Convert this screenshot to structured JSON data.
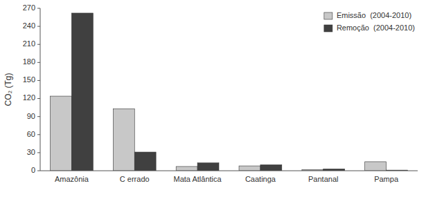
{
  "chart_data": {
    "type": "bar",
    "y_label": "CO₂ (Tg)",
    "categories": [
      "Amazônia",
      "C errado",
      "Mata Atlântica",
      "Caatinga",
      "Pantanal",
      "Pampa"
    ],
    "series": [
      {
        "name": "Emissão  (2004-2010)",
        "color": "#c8c8c8",
        "values": [
          124,
          103,
          7,
          8,
          2,
          15
        ]
      },
      {
        "name": "Remoção  (2004-2010)",
        "color": "#404040",
        "values": [
          262,
          31,
          13,
          10,
          3,
          1
        ]
      }
    ],
    "ylim": [
      0,
      270
    ],
    "yticks": [
      0,
      30,
      60,
      90,
      120,
      150,
      180,
      210,
      240,
      270
    ],
    "grid": false,
    "legend": "upper right"
  }
}
